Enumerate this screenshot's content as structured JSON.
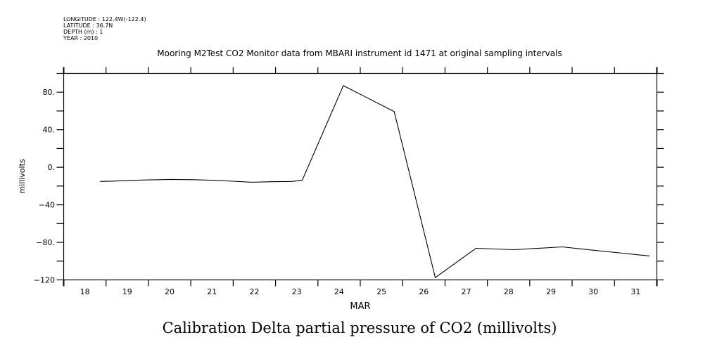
{
  "header": {
    "longitude": "LONGITUDE : 122.4W(-122.4)",
    "latitude": "LATITUDE : 36.7N",
    "depth": "DEPTH (m) : 1",
    "year": "YEAR : 2010"
  },
  "chart_data": {
    "type": "line",
    "title": "Mooring M2Test CO2 Monitor data from MBARI instrument id 1471 at original sampling intervals",
    "subtitle": "Calibration Delta partial pressure of CO2 (millivolts)",
    "xlabel": "MAR",
    "ylabel": "millivolts",
    "xlim": [
      18,
      32
    ],
    "ylim": [
      -120,
      100
    ],
    "x_ticks": [
      18,
      19,
      20,
      21,
      22,
      23,
      24,
      25,
      26,
      27,
      28,
      29,
      30,
      31
    ],
    "x_tick_labels": [
      "18",
      "19",
      "20",
      "21",
      "22",
      "23",
      "24",
      "25",
      "26",
      "27",
      "28",
      "29",
      "30",
      "31"
    ],
    "y_ticks": [
      80,
      40,
      0,
      -40,
      -80,
      -120
    ],
    "y_tick_labels": [
      "80.",
      "40.",
      "0.",
      "-40",
      "-80.",
      "-120"
    ],
    "grid": false,
    "series": [
      {
        "name": "Calibration Delta partial pressure of CO2",
        "color": "#000000",
        "x": [
          18.86,
          19.19,
          19.86,
          20.53,
          21.08,
          21.52,
          22.0,
          22.45,
          22.91,
          23.38,
          23.63,
          24.6,
          25.8,
          26.77,
          27.73,
          28.63,
          29.77,
          30.45,
          31.83
        ],
        "y": [
          -15.1,
          -14.7,
          -13.6,
          -12.9,
          -13.2,
          -13.9,
          -14.9,
          -15.9,
          -15.4,
          -15.1,
          -13.9,
          87.0,
          59.3,
          -117.5,
          -86.3,
          -87.8,
          -84.8,
          -88.1,
          -94.5
        ]
      }
    ]
  }
}
